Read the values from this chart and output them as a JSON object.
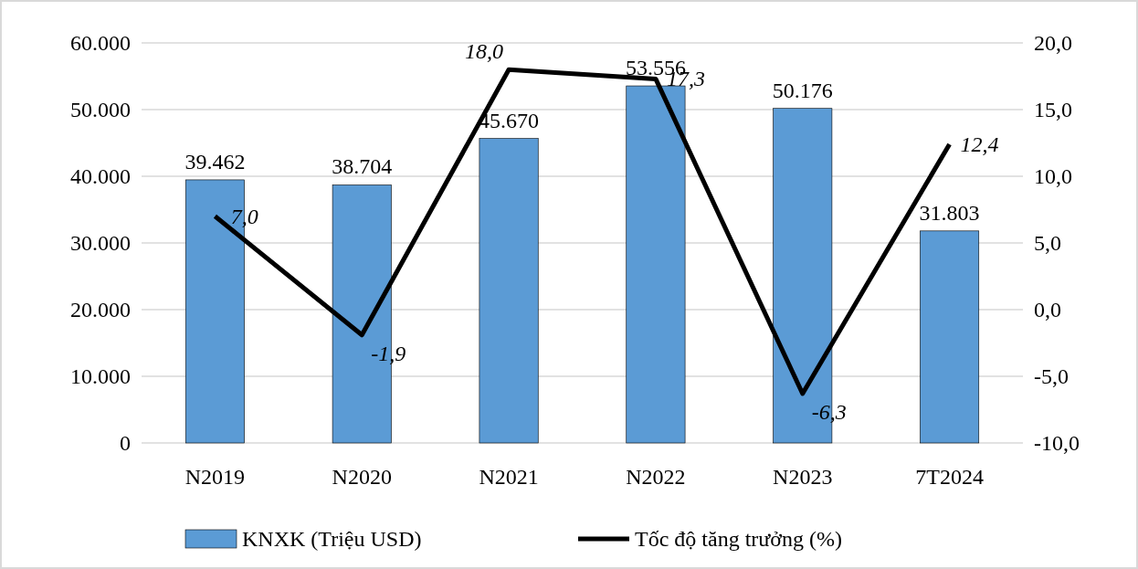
{
  "chart_data": {
    "type": "bar",
    "categories": [
      "N2019",
      "N2020",
      "N2021",
      "N2022",
      "N2023",
      "7T2024"
    ],
    "series": [
      {
        "name": "KNXK (Triệu USD)",
        "color": "#5b9bd5",
        "values": [
          39462,
          38704,
          45670,
          53556,
          50176,
          31803
        ],
        "value_labels": [
          "39.462",
          "38.704",
          "45.670",
          "53.556",
          "50.176",
          "31.803"
        ]
      },
      {
        "type": "line",
        "axis": "y2",
        "name": "Tốc độ tăng trưởng (%)",
        "color": "#000000",
        "values": [
          7.0,
          -1.9,
          18.0,
          17.3,
          -6.3,
          12.4
        ],
        "value_labels": [
          "7,0",
          "-1,9",
          "18,0",
          "17,3",
          "-6,3",
          "12,4"
        ]
      }
    ],
    "ylim": [
      0,
      60000
    ],
    "yticks": [
      {
        "value": 0,
        "label": "0"
      },
      {
        "value": 10000,
        "label": "10.000"
      },
      {
        "value": 20000,
        "label": "20.000"
      },
      {
        "value": 30000,
        "label": "30.000"
      },
      {
        "value": 40000,
        "label": "40.000"
      },
      {
        "value": 50000,
        "label": "50.000"
      },
      {
        "value": 60000,
        "label": "60.000"
      }
    ],
    "y2lim": [
      -10,
      20
    ],
    "y2ticks": [
      {
        "value": -10,
        "label": "-10,0"
      },
      {
        "value": -5,
        "label": "-5,0"
      },
      {
        "value": 0,
        "label": "0,0"
      },
      {
        "value": 5,
        "label": "5,0"
      },
      {
        "value": 10,
        "label": "10,0"
      },
      {
        "value": 15,
        "label": "15,0"
      },
      {
        "value": 20,
        "label": "20,0"
      }
    ],
    "grid": "y",
    "legend": "bottom",
    "marker": "none",
    "line_style": "solid"
  }
}
